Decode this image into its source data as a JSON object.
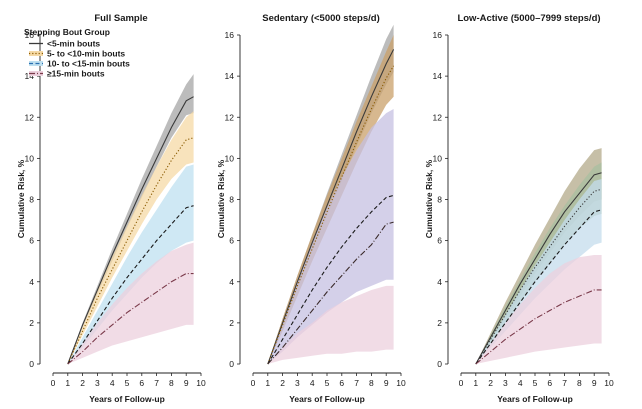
{
  "chart_data": [
    {
      "type": "area",
      "title": "Full Sample",
      "xlabel": "Years of Follow-up",
      "ylabel": "Cumulative Risk, %",
      "xlim": [
        0,
        10
      ],
      "ylim": [
        0,
        16
      ],
      "xticks": [
        0,
        1,
        2,
        3,
        4,
        5,
        6,
        7,
        8,
        9,
        10
      ],
      "yticks": [
        0,
        2,
        4,
        6,
        8,
        10,
        12,
        14,
        16
      ],
      "legend": {
        "title": "Stepping Bout Group",
        "placement": "top-left",
        "entries": [
          "<5-min bouts",
          "5- to <10-min bouts",
          "10- to <15-min bouts",
          "≥15-min bouts"
        ]
      },
      "series": [
        {
          "key": "lt5",
          "color": "#3a3a3a",
          "fill": "#a6a6a6",
          "dash": "",
          "x": [
            1,
            2,
            3,
            4,
            5,
            6,
            7,
            8,
            9,
            9.5
          ],
          "values": [
            0,
            1.9,
            3.6,
            5.3,
            6.9,
            8.5,
            10.0,
            11.5,
            12.8,
            13.0
          ],
          "lower": [
            0,
            1.8,
            3.4,
            5.0,
            6.6,
            8.1,
            9.6,
            11.0,
            12.1,
            12.2
          ],
          "upper": [
            0,
            2.0,
            3.8,
            5.6,
            7.3,
            9.0,
            10.6,
            12.2,
            13.6,
            14.1
          ]
        },
        {
          "key": "b5_10",
          "color": "#8a5a00",
          "fill": "#f5d9a6",
          "dash": "1.2,2",
          "x": [
            1,
            2,
            3,
            4,
            5,
            6,
            7,
            8,
            9,
            9.5
          ],
          "values": [
            0,
            1.6,
            3.2,
            4.6,
            6.0,
            7.4,
            8.7,
            9.9,
            10.9,
            11.0
          ],
          "lower": [
            0,
            1.4,
            2.8,
            4.2,
            5.5,
            6.8,
            8.0,
            9.0,
            9.7,
            9.8
          ],
          "upper": [
            0,
            1.8,
            3.6,
            5.2,
            6.7,
            8.2,
            9.6,
            10.9,
            12.0,
            12.3
          ]
        },
        {
          "key": "b10_15",
          "color": "#1a1a1a",
          "fill": "#bfe0f0",
          "dash": "4,2.5",
          "x": [
            1,
            2,
            3,
            4,
            5,
            6,
            7,
            8,
            9,
            9.5
          ],
          "values": [
            0,
            1.0,
            2.1,
            3.2,
            4.2,
            5.1,
            6.0,
            6.8,
            7.6,
            7.7
          ],
          "lower": [
            0,
            0.8,
            1.7,
            2.6,
            3.4,
            4.2,
            4.9,
            5.5,
            5.9,
            6.0
          ],
          "upper": [
            0,
            1.3,
            2.6,
            3.9,
            5.2,
            6.4,
            7.5,
            8.6,
            9.6,
            9.7
          ]
        },
        {
          "key": "ge15",
          "color": "#7a3a4a",
          "fill": "#ecd0dd",
          "dash": "6,2,1,2",
          "x": [
            1,
            2,
            3,
            4,
            5,
            6,
            7,
            8,
            9,
            9.5
          ],
          "values": [
            0,
            0.6,
            1.3,
            1.9,
            2.5,
            3.0,
            3.5,
            4.0,
            4.4,
            4.4
          ],
          "lower": [
            0,
            0.3,
            0.6,
            0.9,
            1.1,
            1.3,
            1.5,
            1.7,
            1.9,
            1.9
          ],
          "upper": [
            0,
            1.0,
            2.0,
            2.9,
            3.7,
            4.4,
            5.0,
            5.5,
            5.8,
            5.9
          ]
        }
      ]
    },
    {
      "type": "area",
      "title": "Sedentary (<5000 steps/d)",
      "xlabel": "Years of Follow-up",
      "ylabel": "Cumulative Risk, %",
      "xlim": [
        0,
        10
      ],
      "ylim": [
        0,
        16
      ],
      "xticks": [
        0,
        1,
        2,
        3,
        4,
        5,
        6,
        7,
        8,
        9,
        10
      ],
      "yticks": [
        0,
        2,
        4,
        6,
        8,
        10,
        12,
        14,
        16
      ],
      "series": [
        {
          "key": "lt5",
          "color": "#3a3a3a",
          "fill": "#a6a6a6",
          "dash": "",
          "x": [
            1,
            2,
            3,
            4,
            5,
            6,
            7,
            8,
            9,
            9.5
          ],
          "values": [
            0,
            2.0,
            4.0,
            5.9,
            7.7,
            9.5,
            11.3,
            13.0,
            14.6,
            15.3
          ],
          "lower": [
            0,
            1.8,
            3.7,
            5.5,
            7.2,
            8.9,
            10.6,
            12.2,
            13.6,
            14.2
          ],
          "upper": [
            0,
            2.2,
            4.3,
            6.3,
            8.3,
            10.2,
            12.1,
            14.0,
            15.8,
            16.5
          ]
        },
        {
          "key": "b5_10",
          "color": "#8a5a00",
          "fill": "#c9a06a",
          "dash": "1.2,2",
          "x": [
            1,
            2,
            3,
            4,
            5,
            6,
            7,
            8,
            9,
            9.5
          ],
          "values": [
            0,
            1.9,
            3.8,
            5.6,
            7.4,
            9.1,
            10.8,
            12.4,
            13.9,
            14.5
          ],
          "lower": [
            0,
            1.6,
            3.3,
            5.0,
            6.6,
            8.2,
            9.8,
            11.3,
            12.6,
            13.0
          ],
          "upper": [
            0,
            2.2,
            4.3,
            6.3,
            8.2,
            10.0,
            11.8,
            13.5,
            15.2,
            16.0
          ]
        },
        {
          "key": "b10_15",
          "color": "#1a1a1a",
          "fill": "#c6c0e2",
          "dash": "4,2.5",
          "x": [
            1,
            2,
            3,
            4,
            5,
            6,
            7,
            8,
            9,
            9.5
          ],
          "values": [
            0,
            1.2,
            2.4,
            3.6,
            4.7,
            5.7,
            6.6,
            7.4,
            8.1,
            8.2
          ],
          "lower": [
            0,
            0.6,
            1.3,
            1.9,
            2.5,
            3.0,
            3.5,
            3.8,
            4.1,
            4.1
          ],
          "upper": [
            0,
            2.0,
            4.0,
            5.9,
            7.6,
            9.1,
            10.4,
            11.5,
            12.2,
            12.4
          ]
        },
        {
          "key": "ge15",
          "color": "#3a2a2a",
          "fill": "#ecd0dd",
          "dash": "6,2,1,2",
          "x": [
            1,
            2,
            3,
            4,
            5,
            6,
            7,
            8,
            9,
            9.5
          ],
          "values": [
            0,
            0.8,
            1.7,
            2.6,
            3.5,
            4.3,
            5.1,
            5.8,
            6.8,
            6.9
          ],
          "lower": [
            0,
            0.2,
            0.3,
            0.4,
            0.5,
            0.5,
            0.6,
            0.6,
            0.7,
            0.7
          ],
          "upper": [
            0,
            0.8,
            1.5,
            2.0,
            2.6,
            3.0,
            3.3,
            3.6,
            3.8,
            3.8
          ]
        }
      ]
    },
    {
      "type": "area",
      "title": "Low-Active (5000–7999 steps/d)",
      "xlabel": "Years of Follow-up",
      "ylabel": "Cumulative Risk, %",
      "xlim": [
        0,
        10
      ],
      "ylim": [
        0,
        16
      ],
      "xticks": [
        0,
        1,
        2,
        3,
        4,
        5,
        6,
        7,
        8,
        9,
        10
      ],
      "yticks": [
        0,
        2,
        4,
        6,
        8,
        10,
        12,
        14,
        16
      ],
      "series": [
        {
          "key": "lt5",
          "color": "#3a3a3a",
          "fill": "#b3a98a",
          "dash": "",
          "x": [
            1,
            2,
            3,
            4,
            5,
            6,
            7,
            8,
            9,
            9.5
          ],
          "values": [
            0,
            1.3,
            2.6,
            3.9,
            5.1,
            6.3,
            7.4,
            8.3,
            9.2,
            9.3
          ],
          "lower": [
            0,
            1.1,
            2.2,
            3.3,
            4.4,
            5.4,
            6.4,
            7.2,
            7.9,
            8.0
          ],
          "upper": [
            0,
            1.5,
            3.0,
            4.4,
            5.8,
            7.1,
            8.4,
            9.5,
            10.4,
            10.5
          ]
        },
        {
          "key": "b5_10",
          "color": "#3a3a3a",
          "fill": "#a8bfa0",
          "dash": "1.2,2",
          "x": [
            1,
            2,
            3,
            4,
            5,
            6,
            7,
            8,
            9,
            9.5
          ],
          "values": [
            0,
            1.2,
            2.4,
            3.6,
            4.7,
            5.7,
            6.7,
            7.6,
            8.4,
            8.5
          ],
          "lower": [
            0,
            1.0,
            2.0,
            3.0,
            4.0,
            4.9,
            5.8,
            6.6,
            7.2,
            7.3
          ],
          "upper": [
            0,
            1.4,
            2.8,
            4.1,
            5.4,
            6.6,
            7.7,
            8.7,
            9.6,
            9.8
          ]
        },
        {
          "key": "b10_15",
          "color": "#1a1a1a",
          "fill": "#c4dcec",
          "dash": "4,2.5",
          "x": [
            1,
            2,
            3,
            4,
            5,
            6,
            7,
            8,
            9,
            9.5
          ],
          "values": [
            0,
            1.0,
            2.0,
            3.0,
            4.0,
            4.9,
            5.8,
            6.6,
            7.4,
            7.5
          ],
          "lower": [
            0,
            0.8,
            1.6,
            2.4,
            3.2,
            3.9,
            4.6,
            5.2,
            5.8,
            5.9
          ],
          "upper": [
            0,
            1.2,
            2.4,
            3.6,
            4.8,
            5.9,
            7.0,
            8.0,
            8.9,
            9.0
          ]
        },
        {
          "key": "ge15",
          "color": "#7a3a4a",
          "fill": "#ecd0dd",
          "dash": "6,2,1,2",
          "x": [
            1,
            2,
            3,
            4,
            5,
            6,
            7,
            8,
            9,
            9.5
          ],
          "values": [
            0,
            0.6,
            1.2,
            1.7,
            2.2,
            2.6,
            3.0,
            3.3,
            3.6,
            3.6
          ],
          "lower": [
            0,
            0.15,
            0.3,
            0.45,
            0.6,
            0.7,
            0.8,
            0.9,
            1.0,
            1.0
          ],
          "upper": [
            0,
            1.0,
            2.0,
            2.9,
            3.7,
            4.4,
            4.9,
            5.2,
            5.3,
            5.3
          ]
        }
      ]
    }
  ]
}
